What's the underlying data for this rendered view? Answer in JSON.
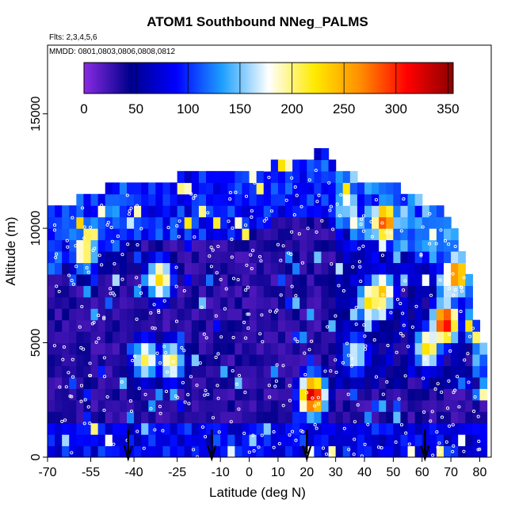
{
  "chart_data": {
    "type": "heatmap",
    "title": "ATOM1 Southbound NNeg_PALMS",
    "subtitle": "Flts: 2,3,4,5,6",
    "date_label": "MMDD: 0801,0803,0806,0808,0812",
    "xlabel": "Latitude (deg N)",
    "ylabel": "Altitude (m)",
    "xlim": [
      -70,
      84
    ],
    "ylim": [
      0,
      18000
    ],
    "x_ticks": [
      "-70",
      "-55",
      "-40",
      "-25",
      "-10",
      "0",
      "10",
      "20",
      "30",
      "40",
      "50",
      "60",
      "70",
      "80"
    ],
    "y_ticks": [
      "0",
      "5000",
      "10000",
      "15000"
    ],
    "colorbar": {
      "ticks": [
        "0",
        "50",
        "100",
        "150",
        "200",
        "250",
        "300",
        "350"
      ],
      "range": [
        0,
        355
      ],
      "colors": [
        "#8a2be2",
        "#00008b",
        "#0000ff",
        "#1ea0ff",
        "#ffffff",
        "#ffea00",
        "#ff8c00",
        "#ff0000",
        "#8b0000"
      ]
    },
    "profile_markers_lat": [
      -42,
      -13,
      20,
      61
    ],
    "envelope_top_m": [
      {
        "lat": -70,
        "alt": 10500
      },
      {
        "lat": -60,
        "alt": 11000
      },
      {
        "lat": -50,
        "alt": 11500
      },
      {
        "lat": -40,
        "alt": 11800
      },
      {
        "lat": -30,
        "alt": 11800
      },
      {
        "lat": -20,
        "alt": 12200
      },
      {
        "lat": -10,
        "alt": 12200
      },
      {
        "lat": 0,
        "alt": 12200
      },
      {
        "lat": 10,
        "alt": 12900
      },
      {
        "lat": 20,
        "alt": 12900
      },
      {
        "lat": 25,
        "alt": 13300
      },
      {
        "lat": 30,
        "alt": 12500
      },
      {
        "lat": 40,
        "alt": 11900
      },
      {
        "lat": 50,
        "alt": 11800
      },
      {
        "lat": 60,
        "alt": 11000
      },
      {
        "lat": 70,
        "alt": 10400
      },
      {
        "lat": 75,
        "alt": 8500
      },
      {
        "lat": 80,
        "alt": 5000
      }
    ],
    "hotspots": [
      {
        "lat": 22,
        "alt": 2700,
        "value": 330
      },
      {
        "lat": 68,
        "alt": 5900,
        "value": 320
      },
      {
        "lat": 72,
        "alt": 8000,
        "value": 280
      },
      {
        "lat": 47,
        "alt": 10300,
        "value": 290
      },
      {
        "lat": 42,
        "alt": 6800,
        "value": 230
      },
      {
        "lat": 46,
        "alt": 7200,
        "value": 240
      },
      {
        "lat": 62,
        "alt": 4800,
        "value": 230
      },
      {
        "lat": -31,
        "alt": 7800,
        "value": 230
      },
      {
        "lat": -36,
        "alt": 4300,
        "value": 210
      },
      {
        "lat": -27,
        "alt": 4200,
        "value": 210
      },
      {
        "lat": 37,
        "alt": 4500,
        "value": 180
      },
      {
        "lat": -57,
        "alt": 9000,
        "value": 220
      },
      {
        "lat": 34,
        "alt": 11200,
        "value": 180
      }
    ]
  }
}
